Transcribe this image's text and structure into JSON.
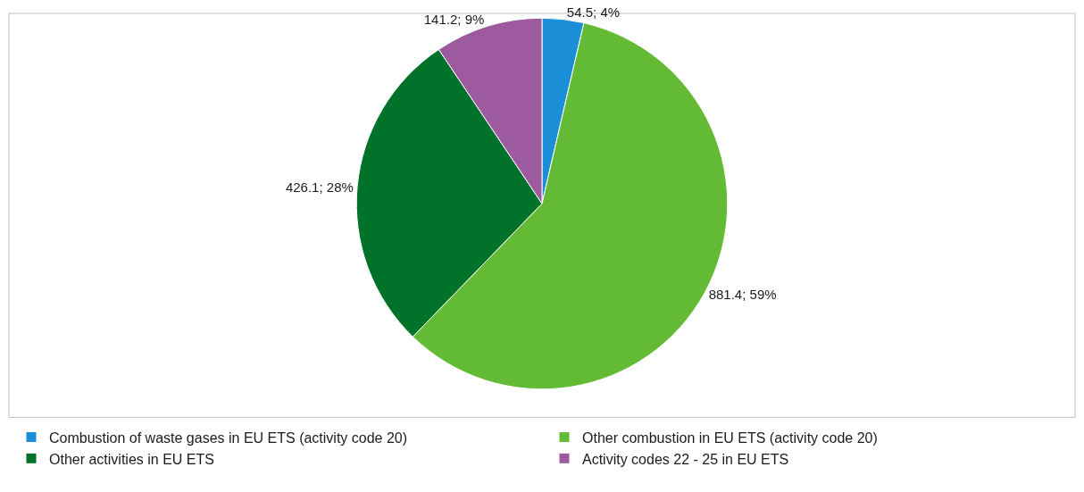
{
  "chart_data": {
    "type": "pie",
    "categories": [
      "Combustion of waste gases in EU ETS (activity code 20)",
      "Other combustion in EU ETS (activity code 20)",
      "Other activities in EU ETS",
      "Activity codes 22 - 25 in EU ETS"
    ],
    "values": [
      54.5,
      881.4,
      426.1,
      141.2
    ],
    "colors": [
      "#1a8fd8",
      "#63bb35",
      "#007229",
      "#9d5a9e"
    ],
    "value_labels": [
      "54.5; 4%",
      "881.4; 59%",
      "426.1; 28%",
      "141.2; 9%"
    ],
    "legend": "bottom"
  }
}
